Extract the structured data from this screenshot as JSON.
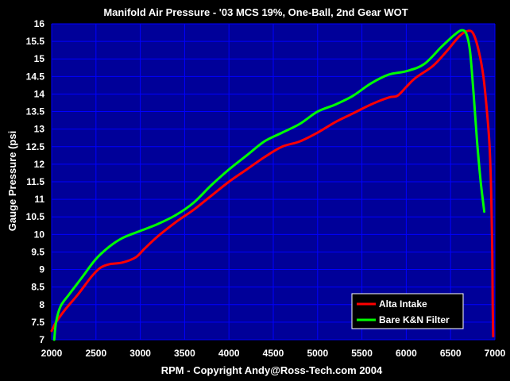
{
  "chart_data": {
    "type": "line",
    "title": "Manifold Air Pressure - '03 MCS 19%, One-Ball, 2nd Gear WOT",
    "xlabel": "RPM  -  Copyright Andy@Ross-Tech.com 2004",
    "ylabel": "Gauge Pressure (psi",
    "xlim": [
      2000,
      7000
    ],
    "ylim": [
      7,
      16
    ],
    "x_ticks": [
      2000,
      2500,
      3000,
      3500,
      4000,
      4500,
      5000,
      5500,
      6000,
      6500,
      7000
    ],
    "y_ticks": [
      "7",
      "7.5",
      "8",
      "8.5",
      "9",
      "9.5",
      "10",
      "10.5",
      "11",
      "11.5",
      "12",
      "12.5",
      "13",
      "13.5",
      "14",
      "14.5",
      "15",
      "15.5",
      "16"
    ],
    "grid": true,
    "legend_position": "bottom-right",
    "background_color": "#000000",
    "plot_background_color": "#000099",
    "grid_color": "#0000ff",
    "series": [
      {
        "name": "Alta Intake",
        "color": "#ff0000",
        "points": [
          [
            2000,
            7.25
          ],
          [
            2050,
            7.5
          ],
          [
            2150,
            7.85
          ],
          [
            2300,
            8.3
          ],
          [
            2450,
            8.8
          ],
          [
            2550,
            9.05
          ],
          [
            2650,
            9.15
          ],
          [
            2800,
            9.2
          ],
          [
            2950,
            9.35
          ],
          [
            3050,
            9.6
          ],
          [
            3200,
            9.95
          ],
          [
            3400,
            10.35
          ],
          [
            3600,
            10.7
          ],
          [
            3800,
            11.1
          ],
          [
            4000,
            11.5
          ],
          [
            4200,
            11.85
          ],
          [
            4400,
            12.2
          ],
          [
            4600,
            12.5
          ],
          [
            4800,
            12.65
          ],
          [
            5000,
            12.9
          ],
          [
            5200,
            13.2
          ],
          [
            5400,
            13.45
          ],
          [
            5600,
            13.7
          ],
          [
            5800,
            13.9
          ],
          [
            5900,
            13.95
          ],
          [
            6000,
            14.2
          ],
          [
            6100,
            14.45
          ],
          [
            6300,
            14.8
          ],
          [
            6450,
            15.2
          ],
          [
            6600,
            15.65
          ],
          [
            6700,
            15.8
          ],
          [
            6760,
            15.7
          ],
          [
            6820,
            15.2
          ],
          [
            6870,
            14.5
          ],
          [
            6910,
            13.5
          ],
          [
            6940,
            12.5
          ],
          [
            6960,
            11.0
          ],
          [
            6970,
            9.5
          ],
          [
            6975,
            8.0
          ],
          [
            6980,
            7.1
          ]
        ]
      },
      {
        "name": "Bare K&N Filter",
        "color": "#00ff00",
        "points": [
          [
            2030,
            7.0
          ],
          [
            2050,
            7.5
          ],
          [
            2100,
            7.95
          ],
          [
            2200,
            8.3
          ],
          [
            2350,
            8.8
          ],
          [
            2500,
            9.3
          ],
          [
            2650,
            9.65
          ],
          [
            2800,
            9.9
          ],
          [
            3000,
            10.1
          ],
          [
            3200,
            10.3
          ],
          [
            3400,
            10.55
          ],
          [
            3600,
            10.9
          ],
          [
            3800,
            11.4
          ],
          [
            4000,
            11.85
          ],
          [
            4200,
            12.25
          ],
          [
            4400,
            12.65
          ],
          [
            4600,
            12.9
          ],
          [
            4800,
            13.15
          ],
          [
            5000,
            13.5
          ],
          [
            5200,
            13.7
          ],
          [
            5400,
            13.95
          ],
          [
            5600,
            14.3
          ],
          [
            5800,
            14.55
          ],
          [
            6000,
            14.65
          ],
          [
            6200,
            14.85
          ],
          [
            6400,
            15.35
          ],
          [
            6550,
            15.7
          ],
          [
            6630,
            15.82
          ],
          [
            6680,
            15.7
          ],
          [
            6720,
            15.2
          ],
          [
            6760,
            14.0
          ],
          [
            6800,
            12.6
          ],
          [
            6840,
            11.5
          ],
          [
            6880,
            10.65
          ]
        ]
      }
    ]
  }
}
